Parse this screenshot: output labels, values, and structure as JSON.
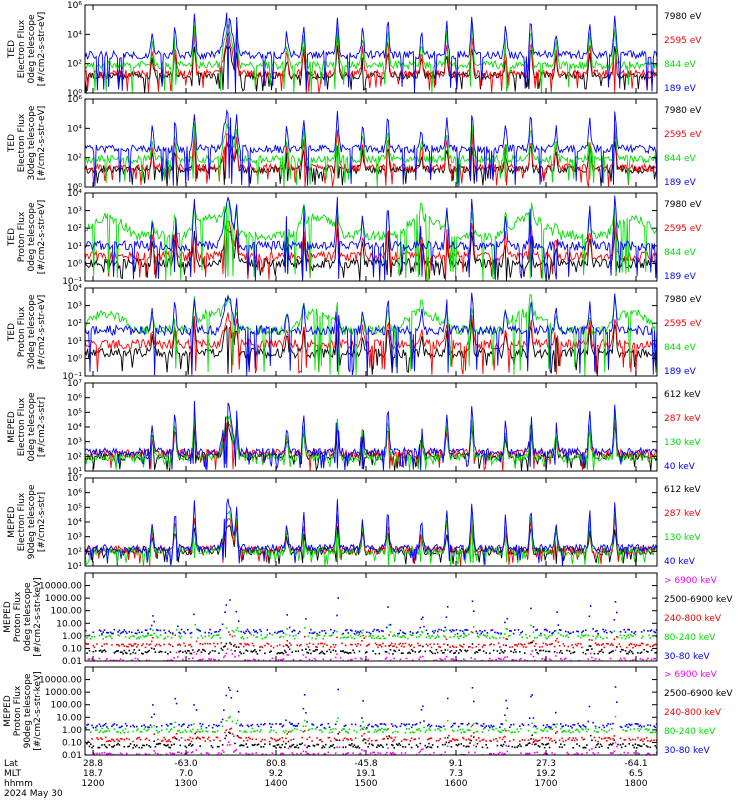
{
  "colors": {
    "black": "#000000",
    "red": "#ff0000",
    "green": "#00e000",
    "blue": "#0000ff",
    "magenta": "#ff00ff",
    "frame": "#000000"
  },
  "chart_data": [
    {
      "type": "line",
      "panel": 1,
      "ylabel": [
        "TED",
        "Electron Flux",
        "0deg telescope",
        "[#/cm2-s-str-eV]"
      ],
      "yscale": "log",
      "ylim": [
        1,
        1000000
      ],
      "yticks": [
        {
          "v": 1,
          "label": "10⁰"
        },
        {
          "v": 100,
          "label": "10²"
        },
        {
          "v": 10000,
          "label": "10⁴"
        },
        {
          "v": 1000000,
          "label": "10⁶"
        }
      ],
      "series": [
        {
          "name": "7980 eV",
          "color": "black",
          "base": 1.2,
          "peak": 3.2
        },
        {
          "name": "2595 eV",
          "color": "red",
          "base": 1.3,
          "peak": 4.0
        },
        {
          "name": "844 eV",
          "color": "green",
          "base": 1.9,
          "peak": 4.6
        },
        {
          "name": "189 eV",
          "color": "blue",
          "base": 2.6,
          "peak": 5.4
        }
      ]
    },
    {
      "type": "line",
      "panel": 2,
      "ylabel": [
        "TED",
        "Electron Flux",
        "30deg telescope",
        "[#/cm2-s-str-eV]"
      ],
      "yscale": "log",
      "ylim": [
        1,
        1000000
      ],
      "yticks": [
        {
          "v": 1,
          "label": "10⁰"
        },
        {
          "v": 100,
          "label": "10²"
        },
        {
          "v": 10000,
          "label": "10⁴"
        },
        {
          "v": 1000000,
          "label": "10⁶"
        }
      ],
      "series": [
        {
          "name": "7980 eV",
          "color": "black",
          "base": 1.2,
          "peak": 3.0
        },
        {
          "name": "2595 eV",
          "color": "red",
          "base": 1.3,
          "peak": 3.8
        },
        {
          "name": "844 eV",
          "color": "green",
          "base": 1.9,
          "peak": 4.3
        },
        {
          "name": "189 eV",
          "color": "blue",
          "base": 2.6,
          "peak": 5.2
        }
      ]
    },
    {
      "type": "line",
      "panel": 3,
      "ylabel": [
        "TED",
        "Proton Flux",
        "0deg telescope",
        "[#/cm2-s-str-eV]"
      ],
      "yscale": "log",
      "ylim": [
        0.1,
        10000
      ],
      "yticks": [
        {
          "v": 0.1,
          "label": "10⁻¹"
        },
        {
          "v": 1,
          "label": "10⁰"
        },
        {
          "v": 10,
          "label": "10¹"
        },
        {
          "v": 100,
          "label": "10²"
        },
        {
          "v": 1000,
          "label": "10³"
        },
        {
          "v": 10000,
          "label": "10⁴"
        }
      ],
      "series": [
        {
          "name": "7980 eV",
          "color": "black",
          "base": 0.0,
          "peak": 2.0
        },
        {
          "name": "2595 eV",
          "color": "red",
          "base": 0.4,
          "peak": 2.4
        },
        {
          "name": "844 eV",
          "color": "green",
          "base": 1.6,
          "peak": 3.0
        },
        {
          "name": "189 eV",
          "color": "blue",
          "base": 1.0,
          "peak": 3.8
        }
      ]
    },
    {
      "type": "line",
      "panel": 4,
      "ylabel": [
        "TED",
        "Proton Flux",
        "30deg telescope",
        "[#/cm2-s-str-eV]"
      ],
      "yscale": "log",
      "ylim": [
        0.1,
        10000
      ],
      "yticks": [
        {
          "v": 0.1,
          "label": "10⁻¹"
        },
        {
          "v": 1,
          "label": "10⁰"
        },
        {
          "v": 10,
          "label": "10¹"
        },
        {
          "v": 100,
          "label": "10²"
        },
        {
          "v": 1000,
          "label": "10³"
        },
        {
          "v": 10000,
          "label": "10⁴"
        }
      ],
      "series": [
        {
          "name": "7980 eV",
          "color": "black",
          "base": 0.3,
          "peak": 2.0
        },
        {
          "name": "2595 eV",
          "color": "red",
          "base": 0.8,
          "peak": 2.4
        },
        {
          "name": "844 eV",
          "color": "green",
          "base": 1.6,
          "peak": 2.8
        },
        {
          "name": "189 eV",
          "color": "blue",
          "base": 1.6,
          "peak": 3.6
        }
      ]
    },
    {
      "type": "line",
      "panel": 5,
      "ylabel": [
        "MEPED",
        "Electron Flux",
        "0deg telescope",
        "[#/cm2-s-str]"
      ],
      "yscale": "log",
      "ylim": [
        10,
        10000000
      ],
      "yticks": [
        {
          "v": 10,
          "label": "10¹"
        },
        {
          "v": 100,
          "label": "10²"
        },
        {
          "v": 1000,
          "label": "10³"
        },
        {
          "v": 10000,
          "label": "10⁴"
        },
        {
          "v": 100000,
          "label": "10⁵"
        },
        {
          "v": 1000000,
          "label": "10⁶"
        },
        {
          "v": 10000000,
          "label": "10⁷"
        }
      ],
      "series": [
        {
          "name": "612 keV",
          "color": "black",
          "base": 2.0,
          "peak": 4.2
        },
        {
          "name": "287 keV",
          "color": "red",
          "base": 2.2,
          "peak": 4.4
        },
        {
          "name": "130 keV",
          "color": "green",
          "base": 1.9,
          "peak": 4.8
        },
        {
          "name": "40 keV",
          "color": "blue",
          "base": 2.3,
          "peak": 5.6
        }
      ]
    },
    {
      "type": "line",
      "panel": 6,
      "ylabel": [
        "MEPED",
        "Electron Flux",
        "90deg telescope",
        "[#/cm2-s-str]"
      ],
      "yscale": "log",
      "ylim": [
        10,
        10000000
      ],
      "yticks": [
        {
          "v": 10,
          "label": "10¹"
        },
        {
          "v": 100,
          "label": "10²"
        },
        {
          "v": 1000,
          "label": "10³"
        },
        {
          "v": 10000,
          "label": "10⁴"
        },
        {
          "v": 100000,
          "label": "10⁵"
        },
        {
          "v": 1000000,
          "label": "10⁶"
        },
        {
          "v": 10000000,
          "label": "10⁷"
        }
      ],
      "series": [
        {
          "name": "612 keV",
          "color": "black",
          "base": 2.0,
          "peak": 3.8
        },
        {
          "name": "287 keV",
          "color": "red",
          "base": 2.1,
          "peak": 4.4
        },
        {
          "name": "130 keV",
          "color": "green",
          "base": 2.0,
          "peak": 4.8
        },
        {
          "name": "40 keV",
          "color": "blue",
          "base": 2.2,
          "peak": 5.4
        }
      ]
    },
    {
      "type": "scatter",
      "panel": 7,
      "ylabel": [
        "MEPED",
        "Proton Flux",
        "0deg telescope",
        "[#/cm2-s-str-keV]"
      ],
      "yscale": "log",
      "ylim": [
        0.01,
        100000
      ],
      "yticks": [
        {
          "v": 0.01,
          "label": "0.01"
        },
        {
          "v": 0.1,
          "label": "0.10"
        },
        {
          "v": 1,
          "label": "1.00"
        },
        {
          "v": 10,
          "label": "10.00"
        },
        {
          "v": 100,
          "label": "100.00"
        },
        {
          "v": 1000,
          "label": "1000.00"
        },
        {
          "v": 10000,
          "label": "10000.00"
        }
      ],
      "series": [
        {
          "name": "> 6900 keV",
          "color": "magenta",
          "base": -1.9,
          "peak": -1.0
        },
        {
          "name": "2500-6900 keV",
          "color": "black",
          "base": -1.2,
          "peak": -0.4
        },
        {
          "name": "240-800 keV",
          "color": "red",
          "base": -0.7,
          "peak": 0.3
        },
        {
          "name": "80-240 keV",
          "color": "green",
          "base": 0.0,
          "peak": 1.0
        },
        {
          "name": "30-80 keV",
          "color": "blue",
          "base": 0.4,
          "peak": 3.0
        }
      ]
    },
    {
      "type": "scatter",
      "panel": 8,
      "ylabel": [
        "MEPED",
        "Proton Flux",
        "90deg telescope",
        "[#/cm2-s-str-keV]"
      ],
      "yscale": "log",
      "ylim": [
        0.01,
        100000
      ],
      "yticks": [
        {
          "v": 0.01,
          "label": "0.01"
        },
        {
          "v": 0.1,
          "label": "0.10"
        },
        {
          "v": 1,
          "label": "1.00"
        },
        {
          "v": 10,
          "label": "10.00"
        },
        {
          "v": 100,
          "label": "100.00"
        },
        {
          "v": 1000,
          "label": "1000.00"
        },
        {
          "v": 10000,
          "label": "10000.00"
        }
      ],
      "series": [
        {
          "name": "> 6900 keV",
          "color": "magenta",
          "base": -1.9,
          "peak": -1.0
        },
        {
          "name": "2500-6900 keV",
          "color": "black",
          "base": -1.2,
          "peak": -0.3
        },
        {
          "name": "240-800 keV",
          "color": "red",
          "base": -0.7,
          "peak": 0.3
        },
        {
          "name": "80-240 keV",
          "color": "green",
          "base": 0.0,
          "peak": 1.0
        },
        {
          "name": "30-80 keV",
          "color": "blue",
          "base": 0.4,
          "peak": 3.4
        }
      ]
    }
  ],
  "time_axis": {
    "x_range": [
      "1115",
      "1800"
    ],
    "ticks": [
      {
        "lat": "28.8",
        "mlt": "18.7",
        "hhmm": "1200"
      },
      {
        "lat": "-63.0",
        "mlt": "7.0",
        "hhmm": "1300"
      },
      {
        "lat": "80.8",
        "mlt": "9.2",
        "hhmm": "1400"
      },
      {
        "lat": "-45.8",
        "mlt": "19.1",
        "hhmm": "1500"
      },
      {
        "lat": "9.1",
        "mlt": "7.3",
        "hhmm": "1600"
      },
      {
        "lat": "27.3",
        "mlt": "19.2",
        "hhmm": "1700"
      },
      {
        "lat": "-64.1",
        "mlt": "6.5",
        "hhmm": "1800"
      }
    ],
    "row_labels": {
      "lat": "Lat",
      "mlt": "MLT",
      "hhmm": "hhmm"
    },
    "date": "2024 May 30"
  }
}
